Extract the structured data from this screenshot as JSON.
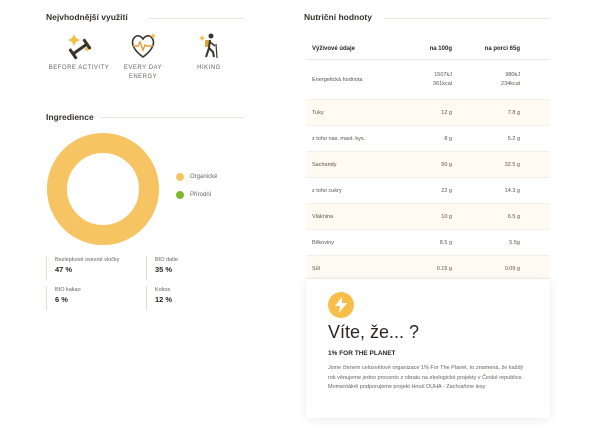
{
  "usage": {
    "title": "Nejvhodnější využití",
    "items": [
      {
        "label_lines": [
          "BEFORE ACTIVITY"
        ],
        "icon": "dumbbell-sparkle-icon"
      },
      {
        "label_lines": [
          "EVERY DAY",
          "ENERGY"
        ],
        "icon": "heart-pulse-icon"
      },
      {
        "label_lines": [
          "HIKING"
        ],
        "icon": "hiker-icon"
      }
    ]
  },
  "ingredients": {
    "title": "Ingredience",
    "legend": [
      {
        "label": "Organické",
        "color": "#f7c463"
      },
      {
        "label": "Přírodní",
        "color": "#7cb72f"
      }
    ],
    "donut_fraction_organic": 1.0,
    "stats": [
      {
        "name": "Bezlepkové ovesné vločky",
        "value": "47 %"
      },
      {
        "name": "BIO datle",
        "value": "35 %"
      },
      {
        "name": "BIO kakao",
        "value": "6 %"
      },
      {
        "name": "Kokos",
        "value": "12 %"
      }
    ]
  },
  "nutrition": {
    "title": "Nutriční hodnoty",
    "headers": [
      "Výživové údaje",
      "na 100g",
      "na porci 65g"
    ],
    "energy": {
      "name": "Energetická hodnota",
      "v1": [
        "1507kJ",
        "361kcal"
      ],
      "v2": [
        "980kJ",
        "234kcal"
      ]
    },
    "rows": [
      {
        "name": "Tuky",
        "v1": "12 g",
        "v2": "7.8 g"
      },
      {
        "name": "z toho nas. mast. kys.",
        "v1": "8 g",
        "v2": "5.2 g"
      },
      {
        "name": "Sacharidy",
        "v1": "50 g",
        "v2": "32.5 g"
      },
      {
        "name": "z toho cukry",
        "v1": "22 g",
        "v2": "14.3 g"
      },
      {
        "name": "Vláknina",
        "v1": "10 g",
        "v2": "6.5 g"
      },
      {
        "name": "Bílkoviny",
        "v1": "8.5 g",
        "v2": "5.5g"
      },
      {
        "name": "Sůl",
        "v1": "0.15 g",
        "v2": "0.09 g"
      }
    ]
  },
  "didyouknow": {
    "title": "Víte, že... ?",
    "subtitle": "1% FOR THE PLANET",
    "text": "Jsme členem celosvětové organizace 1% For The Planet, to znamená, že každý rok věnujeme jedno procento z obratu na ekologické projekty v České republice. Momentálně podporujeme projekt Hnutí DUHA - Zachraňme lesy",
    "icon": "lightning-bolt-icon",
    "accent": "#f7bf4a"
  }
}
